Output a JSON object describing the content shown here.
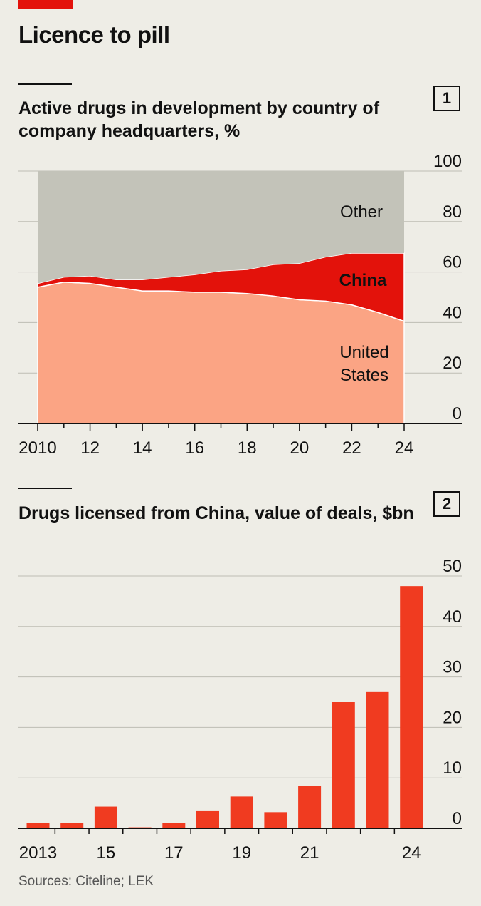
{
  "header": {
    "title": "Licence to pill"
  },
  "footer": {
    "source": "Sources: Citeline; LEK"
  },
  "colors": {
    "accent": "#e3120b",
    "us": "#fba484",
    "china": "#e3120b",
    "other": "#c3c3b9",
    "bar": "#f03b20",
    "background": "#eeede6"
  },
  "chart_data": [
    {
      "type": "area",
      "number": "1",
      "title": "Active drugs in development by country of company headquarters, %",
      "stacked": true,
      "x": [
        2010,
        2011,
        2012,
        2013,
        2014,
        2015,
        2016,
        2017,
        2018,
        2019,
        2020,
        2021,
        2022,
        2023,
        2024
      ],
      "x_tick_values": [
        2010,
        2012,
        2014,
        2016,
        2018,
        2020,
        2022,
        2024
      ],
      "x_tick_labels": [
        "2010",
        "12",
        "14",
        "16",
        "18",
        "20",
        "22",
        "24"
      ],
      "series": [
        {
          "name": "United States",
          "label_lines": [
            "United",
            "States"
          ],
          "color": "#fba484",
          "values": [
            54,
            56,
            55.5,
            54,
            52.5,
            52.5,
            52,
            52,
            51.5,
            50.5,
            49,
            48.5,
            47,
            44,
            40.5
          ]
        },
        {
          "name": "China",
          "label_lines": [
            "China"
          ],
          "color": "#e3120b",
          "values": [
            1.5,
            2,
            3,
            3,
            4.5,
            5.5,
            7,
            8.5,
            9.5,
            12.5,
            14.5,
            17.5,
            20.5,
            23.5,
            27
          ]
        },
        {
          "name": "Other",
          "label_lines": [
            "Other"
          ],
          "color": "#c3c3b9",
          "values": [
            44.5,
            42,
            41.5,
            43,
            43,
            42,
            41,
            39.5,
            39,
            37,
            36.5,
            34,
            32.5,
            32.5,
            32.5
          ]
        }
      ],
      "ylim": [
        0,
        100
      ],
      "y_ticks": [
        0,
        20,
        40,
        60,
        80,
        100
      ],
      "grid": true
    },
    {
      "type": "bar",
      "number": "2",
      "title": "Drugs licensed from China, value of deals, $bn",
      "x": [
        2013,
        2014,
        2015,
        2016,
        2017,
        2018,
        2019,
        2020,
        2021,
        2022,
        2023,
        2024
      ],
      "x_tick_values": [
        2013,
        2015,
        2017,
        2019,
        2021,
        2024
      ],
      "x_tick_labels": [
        "2013",
        "15",
        "17",
        "19",
        "21",
        "24"
      ],
      "values": [
        1.1,
        1.0,
        4.3,
        0.2,
        1.1,
        3.4,
        6.3,
        3.2,
        8.4,
        25,
        27,
        48
      ],
      "color": "#f03b20",
      "ylim": [
        0,
        50
      ],
      "y_ticks": [
        0,
        10,
        20,
        30,
        40,
        50
      ],
      "grid": true
    }
  ]
}
